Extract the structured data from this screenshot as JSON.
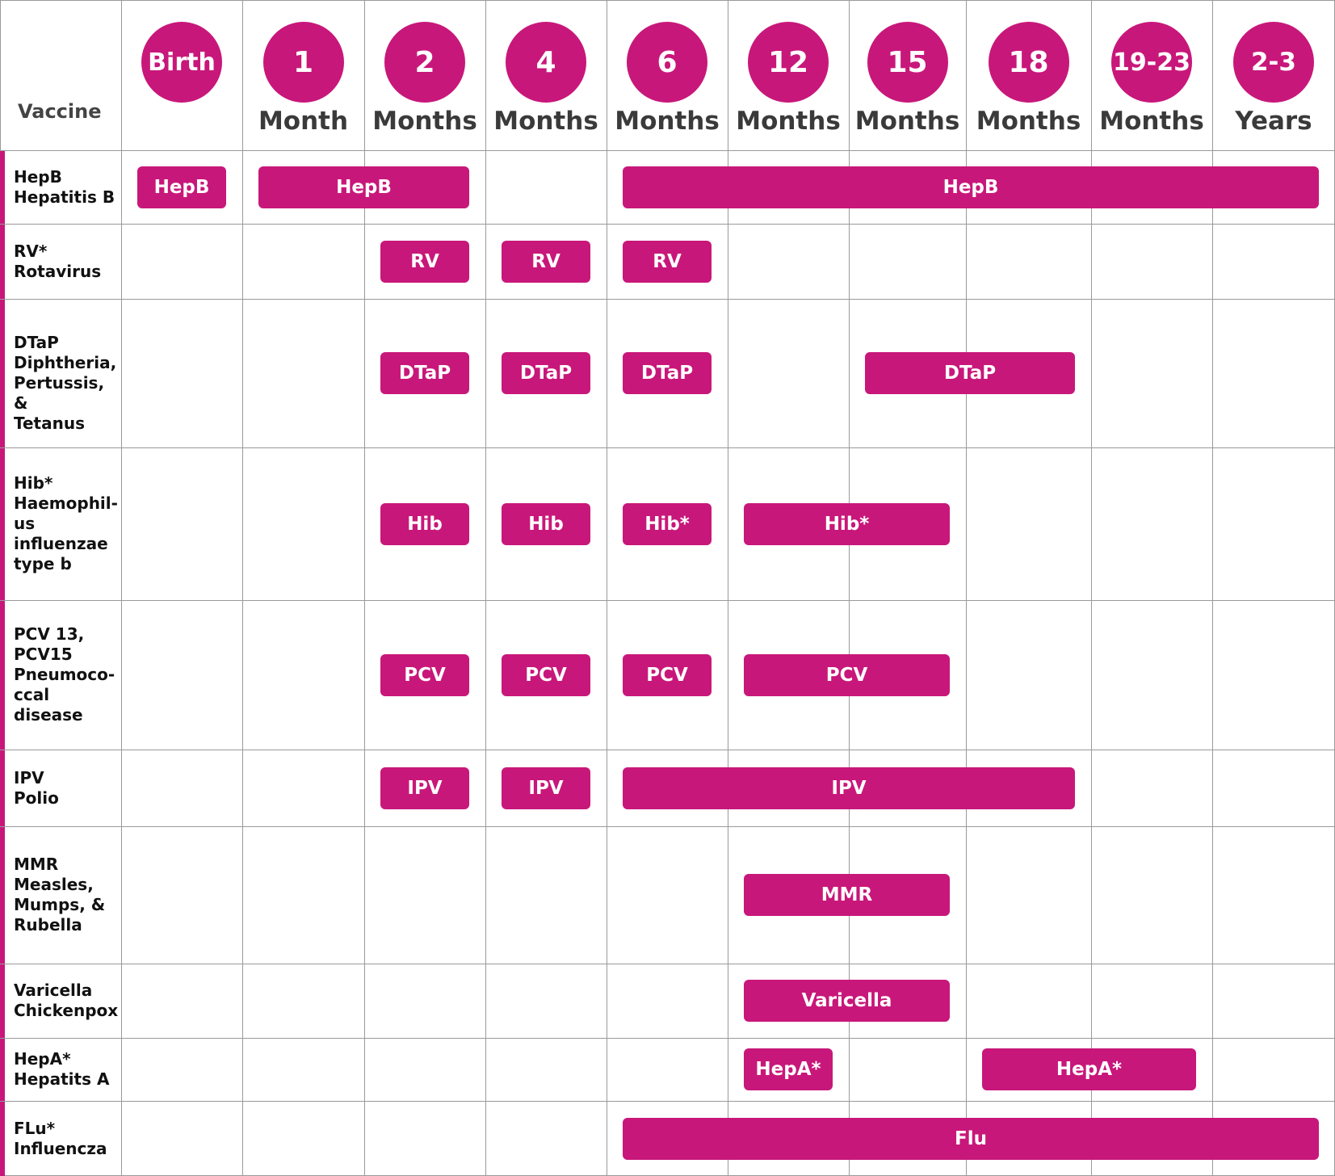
{
  "header": {
    "vaccine_column_label": "Vaccine",
    "ages": [
      {
        "value": "Birth",
        "unit": ""
      },
      {
        "value": "1",
        "unit": "Month"
      },
      {
        "value": "2",
        "unit": "Months"
      },
      {
        "value": "4",
        "unit": "Months"
      },
      {
        "value": "6",
        "unit": "Months"
      },
      {
        "value": "12",
        "unit": "Months"
      },
      {
        "value": "15",
        "unit": "Months"
      },
      {
        "value": "18",
        "unit": "Months"
      },
      {
        "value": "19-23",
        "unit": "Months"
      },
      {
        "value": "2-3",
        "unit": "Years"
      }
    ]
  },
  "colors": {
    "accent": "#c8177a",
    "grid_line": "#9a9a9a",
    "text": "#111111"
  },
  "vaccines": [
    {
      "lines": [
        "HepB",
        "Hepatitis B"
      ],
      "doses": [
        "HepB",
        "HepB",
        "HepB"
      ]
    },
    {
      "lines": [
        "RV*",
        "Rotavirus"
      ],
      "doses": [
        "RV",
        "RV",
        "RV"
      ]
    },
    {
      "lines": [
        "DTaP",
        "Diphtheria,",
        "Pertussis, &",
        "Tetanus"
      ],
      "doses": [
        "DTaP",
        "DTaP",
        "DTaP",
        "DTaP"
      ]
    },
    {
      "lines": [
        "Hib*",
        "Haemophil-",
        "us",
        "influenzae",
        "type b"
      ],
      "doses": [
        "Hib",
        "Hib",
        "Hib*",
        "Hib*"
      ]
    },
    {
      "lines": [
        "PCV 13,",
        "PCV15",
        "Pneumoco-",
        "ccal",
        "disease"
      ],
      "doses": [
        "PCV",
        "PCV",
        "PCV",
        "PCV"
      ]
    },
    {
      "lines": [
        "IPV",
        "Polio"
      ],
      "doses": [
        "IPV",
        "IPV",
        "IPV"
      ]
    },
    {
      "lines": [
        "MMR",
        "Measles,",
        "Mumps, &",
        "Rubella"
      ],
      "doses": [
        "MMR"
      ]
    },
    {
      "lines": [
        "Varicella",
        "Chickenpox"
      ],
      "doses": [
        "Varicella"
      ]
    },
    {
      "lines": [
        "HepA*",
        "Hepatits A"
      ],
      "doses": [
        "HepA*",
        "HepA*"
      ]
    },
    {
      "lines": [
        "FLu*",
        "Influencza"
      ],
      "doses": [
        "Flu"
      ]
    }
  ]
}
